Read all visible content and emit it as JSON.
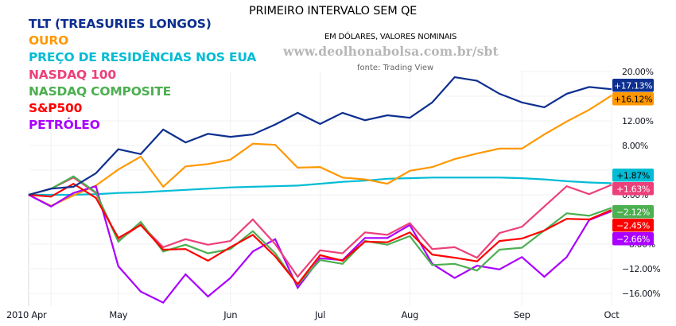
{
  "chart_data": {
    "type": "line",
    "title": "PRIMEIRO INTERVALO SEM QE",
    "subtitle": "EM DÓLARES, VALORES NOMINAIS",
    "watermark": "www.deolhonabolsa.com.br/sbt",
    "source": "fonte: Trading View",
    "xlabel": "",
    "ylabel": "",
    "ylim": [
      -17,
      21
    ],
    "y_ticks": [
      {
        "value": 20,
        "label": "20.00%"
      },
      {
        "value": 12,
        "label": "12.00%"
      },
      {
        "value": 8,
        "label": "8.00%"
      },
      {
        "value": 0,
        "label": "0.00%"
      },
      {
        "value": -8,
        "label": "-8.00%"
      },
      {
        "value": -12,
        "label": "-12.00%"
      },
      {
        "value": -16,
        "label": "-16.00%"
      }
    ],
    "y_gridlines": [
      20,
      16,
      12,
      8,
      4,
      0,
      -4,
      -8,
      -12,
      -16
    ],
    "x_points": 27,
    "x_unit": "week index (weekly points from 2010 Apr to Oct)",
    "x_ticks": [
      {
        "index": 0,
        "label": "2010 Apr"
      },
      {
        "index": 4,
        "label": "May"
      },
      {
        "index": 9,
        "label": "Jun"
      },
      {
        "index": 13,
        "label": "Jul"
      },
      {
        "index": 17,
        "label": "Aug"
      },
      {
        "index": 22,
        "label": "Sep"
      },
      {
        "index": 26,
        "label": "Oct"
      }
    ],
    "x_gridlines": [
      1,
      4,
      9,
      13,
      17,
      22,
      26
    ],
    "grid": true,
    "legend_position": "top-left",
    "series": [
      {
        "name": "TLT (TREASURIES LONGOS)",
        "color": "#0d2f8f",
        "badge_text_color": "#ffffff",
        "last_label": "+17.13%",
        "values": [
          0,
          1.0,
          1.3,
          3.5,
          7.4,
          6.6,
          10.6,
          8.5,
          9.9,
          9.4,
          9.8,
          11.4,
          13.3,
          11.5,
          13.3,
          12.1,
          12.9,
          12.5,
          15.0,
          19.1,
          18.5,
          16.4,
          15.0,
          14.2,
          16.4,
          17.5,
          17.13
        ]
      },
      {
        "name": "OURO",
        "color": "#ff9800",
        "badge_text_color": "#000000",
        "last_label": "+16.12%",
        "values": [
          0,
          -1.8,
          -0.1,
          1.5,
          4.1,
          6.2,
          1.3,
          4.6,
          5.0,
          5.7,
          8.3,
          8.1,
          4.4,
          4.5,
          2.8,
          2.5,
          1.8,
          3.9,
          4.5,
          5.8,
          6.7,
          7.5,
          7.5,
          9.8,
          11.9,
          13.8,
          16.12
        ]
      },
      {
        "name": "PREÇO DE RESIDÊNCIAS NOS EUA",
        "color": "#00bcd4",
        "badge_text_color": "#000000",
        "last_label": "+1.87%",
        "values": [
          0,
          0,
          0,
          0.1,
          0.3,
          0.4,
          0.6,
          0.8,
          1.0,
          1.2,
          1.3,
          1.4,
          1.5,
          1.8,
          2.1,
          2.3,
          2.6,
          2.7,
          2.8,
          2.8,
          2.8,
          2.8,
          2.7,
          2.5,
          2.2,
          2.0,
          1.87
        ]
      },
      {
        "name": "NASDAQ 100",
        "color": "#ec407a",
        "badge_text_color": "#ffffff",
        "last_label": "+1.63%",
        "values": [
          0,
          1.0,
          2.8,
          0.3,
          -7.4,
          -4.8,
          -8.5,
          -7.2,
          -8.1,
          -7.5,
          -4.0,
          -8.0,
          -13.3,
          -9.0,
          -9.5,
          -6.1,
          -6.5,
          -4.6,
          -8.8,
          -8.5,
          -10.2,
          -6.2,
          -5.2,
          -1.9,
          1.4,
          0.1,
          1.63
        ]
      },
      {
        "name": "NASDAQ COMPOSITE",
        "color": "#4caf50",
        "badge_text_color": "#ffffff",
        "last_label": "−2.12%",
        "values": [
          0,
          1.0,
          3.0,
          0.4,
          -7.6,
          -4.4,
          -9.2,
          -8.1,
          -9.5,
          -8.8,
          -5.9,
          -9.5,
          -14.6,
          -10.6,
          -11.2,
          -7.5,
          -8.1,
          -6.7,
          -11.4,
          -11.2,
          -12.3,
          -8.9,
          -8.6,
          -5.8,
          -3.0,
          -3.4,
          -2.12
        ]
      },
      {
        "name": "S&P500",
        "color": "#ff0000",
        "badge_text_color": "#ffffff",
        "last_label": "−2.45%",
        "values": [
          0,
          -0.3,
          1.8,
          -0.5,
          -7.0,
          -4.9,
          -8.9,
          -8.8,
          -10.7,
          -8.5,
          -6.5,
          -10.0,
          -14.5,
          -9.8,
          -10.7,
          -7.6,
          -7.7,
          -6.1,
          -9.7,
          -10.2,
          -10.8,
          -7.5,
          -7.1,
          -5.8,
          -3.9,
          -4.0,
          -2.45
        ]
      },
      {
        "name": "PETRÓLEO",
        "color": "#aa00ff",
        "badge_text_color": "#ffffff",
        "last_label": "−2.66%",
        "values": [
          0,
          -1.9,
          0.3,
          1.4,
          -11.6,
          -15.7,
          -17.5,
          -12.9,
          -16.5,
          -13.5,
          -9.2,
          -7.2,
          -15.1,
          -10.3,
          -10.6,
          -7.0,
          -7.0,
          -4.9,
          -11.2,
          -13.5,
          -11.5,
          -12.1,
          -10.1,
          -13.3,
          -10.1,
          -4.1,
          -2.66
        ]
      }
    ]
  }
}
